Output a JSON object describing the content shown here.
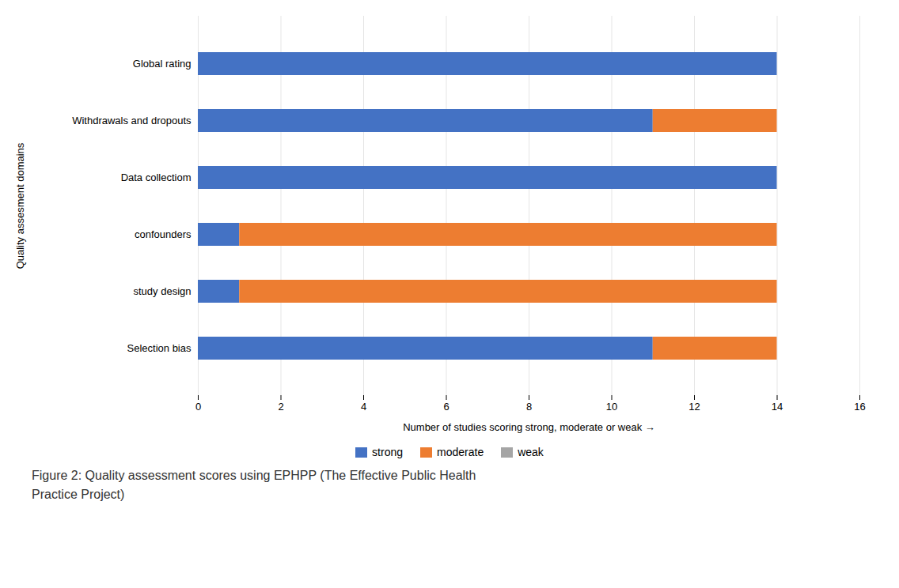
{
  "chart_data": {
    "type": "bar",
    "orientation": "horizontal",
    "stacked": true,
    "categories": [
      "Global rating",
      "Withdrawals and dropouts",
      "Data collectiom",
      "confounders",
      "study design",
      "Selection bias"
    ],
    "series": [
      {
        "name": "strong",
        "color": "#4472C4",
        "values": [
          14,
          11,
          14,
          1,
          1,
          11
        ]
      },
      {
        "name": "moderate",
        "color": "#ED7D31",
        "values": [
          0,
          3,
          0,
          13,
          13,
          3
        ]
      },
      {
        "name": "weak",
        "color": "#A5A5A5",
        "values": [
          0,
          0,
          0,
          0,
          0,
          0
        ]
      }
    ],
    "xlabel": "Number of studies scoring strong, moderate or weak",
    "ylabel": "Quality assesment domains",
    "xlim": [
      0,
      16
    ],
    "xticks": [
      0,
      2,
      4,
      6,
      8,
      10,
      12,
      14,
      16
    ],
    "grid": true,
    "legend": "bottom",
    "caption": "Figure 2: Quality assessment scores using EPHPP (The Effective Public Health\nPractice Project)"
  }
}
